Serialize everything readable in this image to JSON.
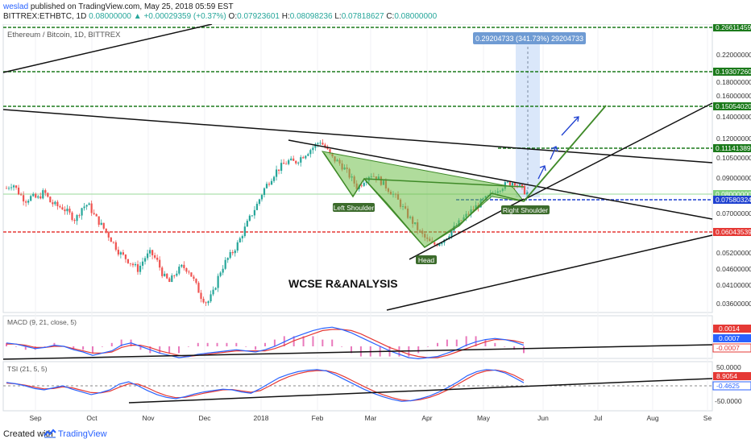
{
  "header": {
    "author": "weslad",
    "published": "published on TradingView.com, May 25, 2018 05:59 EST",
    "symbol": "BITTREX:ETHBTC, 1D",
    "last": "0.08000000",
    "change": "+0.00029359 (+0.37%)",
    "o_label": "O:",
    "o_value": "0.07923601",
    "h_label": "H:",
    "h_value": "0.08098236",
    "l_label": "L:",
    "l_value": "0.07818627",
    "c_label": "C:",
    "c_value": "0.08000000"
  },
  "footer": {
    "created_with": "Created with",
    "brand": "TradingView"
  },
  "colors": {
    "up": "#26a69a",
    "down": "#ef5350",
    "pattern_fill": "#6fbf4a",
    "green_level": "#1b7a1b",
    "red_level": "#e53935",
    "blue_level": "#1e40d0",
    "macd": "#2962ff",
    "signal": "#e53935"
  },
  "chart_data": {
    "type": "candlestick",
    "title": "Ethereum / Bitcoin, 1D, BITTREX",
    "annotation": "WCSE R&ANALYSIS",
    "measure_label": "0.29204733 (341.73%) 29204733",
    "x_ticks": [
      "Sep",
      "Oct",
      "Nov",
      "Dec",
      "2018",
      "Feb",
      "Mar",
      "Apr",
      "May",
      "Jun",
      "Jul",
      "Aug",
      "Se"
    ],
    "y_ticks": [
      "0.22000000",
      "0.18000000",
      "0.16000000",
      "0.14000000",
      "0.12000000",
      "0.10500000",
      "0.09000000",
      "0.07000000",
      "0.05200000",
      "0.04600000",
      "0.04100000",
      "0.03600000"
    ],
    "price_tags": {
      "level_1": "0.26611459",
      "level_2": "0.19307260",
      "level_3": "0.15054020",
      "level_4": "0.11141389",
      "current": "0.08000000",
      "level_5": "0.07580324",
      "level_6": "0.06043539"
    },
    "pattern_labels": [
      "Left Shoulder",
      "Head",
      "Right Shoulder"
    ],
    "ohlc_path": [
      0.083,
      0.086,
      0.08,
      0.076,
      0.078,
      0.077,
      0.081,
      0.075,
      0.073,
      0.072,
      0.069,
      0.066,
      0.072,
      0.074,
      0.068,
      0.064,
      0.06,
      0.056,
      0.052,
      0.05,
      0.048,
      0.046,
      0.05,
      0.052,
      0.049,
      0.044,
      0.042,
      0.045,
      0.047,
      0.046,
      0.042,
      0.038,
      0.036,
      0.039,
      0.045,
      0.049,
      0.052,
      0.056,
      0.062,
      0.068,
      0.074,
      0.082,
      0.088,
      0.094,
      0.098,
      0.101,
      0.1,
      0.104,
      0.108,
      0.112,
      0.117,
      0.11,
      0.103,
      0.1,
      0.095,
      0.089,
      0.083,
      0.088,
      0.092,
      0.09,
      0.086,
      0.082,
      0.078,
      0.073,
      0.068,
      0.064,
      0.06,
      0.057,
      0.055,
      0.056,
      0.058,
      0.061,
      0.064,
      0.067,
      0.07,
      0.073,
      0.076,
      0.078,
      0.082,
      0.084,
      0.086,
      0.087,
      0.083,
      0.08
    ],
    "macd": {
      "label": "MACD (9, 21, close, 5)",
      "tags": [
        "0.0014",
        "0.0007",
        "-0.0007"
      ],
      "line": [
        0.0003,
        0.0002,
        0.0,
        -0.0002,
        -0.0001,
        0.0001,
        0.0,
        -0.0003,
        -0.0005,
        -0.0008,
        -0.0006,
        -0.0004,
        0.0001,
        0.0003,
        0.0,
        -0.0003,
        -0.0006,
        -0.0008,
        -0.001,
        -0.0009,
        -0.0007,
        -0.0006,
        -0.0005,
        -0.0004,
        -0.0003,
        -0.0004,
        -0.0005,
        -0.0003,
        0.0,
        0.0004,
        0.0008,
        0.0011,
        0.0014,
        0.0016,
        0.0017,
        0.0015,
        0.0012,
        0.0008,
        0.0004,
        0.0,
        -0.0004,
        -0.0007,
        -0.001,
        -0.0011,
        -0.001,
        -0.0009,
        -0.0006,
        -0.0003,
        0.0001,
        0.0004,
        0.0006,
        0.0007,
        0.0006,
        0.0004,
        0.0001
      ],
      "signal": [
        0.0002,
        0.0002,
        0.0001,
        -0.0001,
        -0.0001,
        0.0,
        0.0,
        -0.0002,
        -0.0004,
        -0.0006,
        -0.0006,
        -0.0005,
        -0.0001,
        0.0001,
        0.0001,
        -0.0001,
        -0.0004,
        -0.0006,
        -0.0008,
        -0.0009,
        -0.0008,
        -0.0007,
        -0.0006,
        -0.0005,
        -0.0004,
        -0.0004,
        -0.0004,
        -0.0004,
        -0.0002,
        0.0001,
        0.0005,
        0.0008,
        0.0011,
        0.0014,
        0.0015,
        0.0015,
        0.0014,
        0.0011,
        0.0007,
        0.0003,
        -0.0001,
        -0.0004,
        -0.0007,
        -0.0009,
        -0.001,
        -0.001,
        -0.0008,
        -0.0005,
        -0.0002,
        0.0001,
        0.0004,
        0.0006,
        0.0006,
        0.0005,
        0.0003
      ]
    },
    "tsi": {
      "label": "TSI (21, 5, 5)",
      "tags": [
        "50.0000",
        "8.9054",
        "-0.4625",
        "-50.0000"
      ],
      "line": [
        10,
        6,
        0,
        -8,
        -12,
        -6,
        0,
        -10,
        -18,
        -26,
        -20,
        -12,
        5,
        12,
        0,
        -14,
        -26,
        -34,
        -38,
        -32,
        -24,
        -18,
        -14,
        -10,
        -12,
        -18,
        -22,
        -8,
        8,
        24,
        34,
        42,
        46,
        48,
        44,
        32,
        18,
        4,
        -10,
        -22,
        -32,
        -40,
        -46,
        -44,
        -38,
        -30,
        -18,
        -4,
        12,
        30,
        42,
        48,
        46,
        38,
        24,
        9
      ],
      "signal": [
        8,
        6,
        2,
        -4,
        -9,
        -8,
        -3,
        -6,
        -13,
        -20,
        -21,
        -16,
        -4,
        6,
        5,
        -6,
        -19,
        -29,
        -35,
        -34,
        -28,
        -22,
        -17,
        -12,
        -11,
        -15,
        -19,
        -14,
        0,
        15,
        27,
        36,
        42,
        45,
        45,
        38,
        26,
        12,
        -2,
        -15,
        -26,
        -35,
        -42,
        -44,
        -41,
        -34,
        -24,
        -11,
        5,
        21,
        36,
        44,
        47,
        42,
        31,
        16
      ]
    }
  }
}
